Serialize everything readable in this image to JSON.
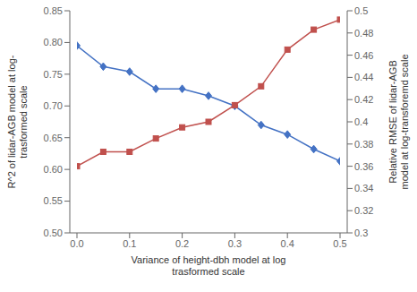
{
  "chart_data": {
    "type": "line",
    "xlabel": "Variance of height-dbh model at log\ntrasformed scale",
    "ylabel": "R^2 of lidar-AGB model at log-\ntrasformed scale",
    "y2label": "Relative RMSE of lidar-AGB\nmodel at log-transforemd scale",
    "x": [
      0,
      0.05,
      0.1,
      0.15,
      0.2,
      0.25,
      0.3,
      0.35,
      0.4,
      0.45,
      0.5
    ],
    "series": [
      {
        "color": "#4472C4",
        "marker": "diamond",
        "values": [
          0.795,
          0.762,
          0.754,
          0.727,
          0.727,
          0.716,
          0.7,
          0.67,
          0.655,
          0.632,
          0.613
        ]
      },
      {
        "color": "#C0504D",
        "marker": "square",
        "axis": "y2",
        "values": [
          0.36,
          0.373,
          0.373,
          0.385,
          0.395,
          0.4,
          0.415,
          0.432,
          0.465,
          0.483,
          0.492
        ]
      }
    ],
    "xlim": [
      0,
      0.5
    ],
    "xticks": [
      {
        "value": 0,
        "label": "0.0"
      },
      0.1,
      0.2,
      0.3,
      0.4,
      0.5
    ],
    "ylim": [
      0.5,
      0.85
    ],
    "yticks": [
      {
        "value": 0.5,
        "label": "0.50"
      },
      0.55,
      {
        "value": 0.6,
        "label": "0.60"
      },
      0.65,
      {
        "value": 0.7,
        "label": "0.70"
      },
      0.75,
      {
        "value": 0.8,
        "label": "0.80"
      },
      0.85
    ],
    "y2lim": [
      0.3,
      0.5
    ],
    "y2ticks": [
      0.3,
      0.32,
      0.34,
      0.36,
      0.38,
      0.4,
      0.42,
      0.44,
      0.46,
      0.48,
      0.5
    ],
    "grid": false
  }
}
